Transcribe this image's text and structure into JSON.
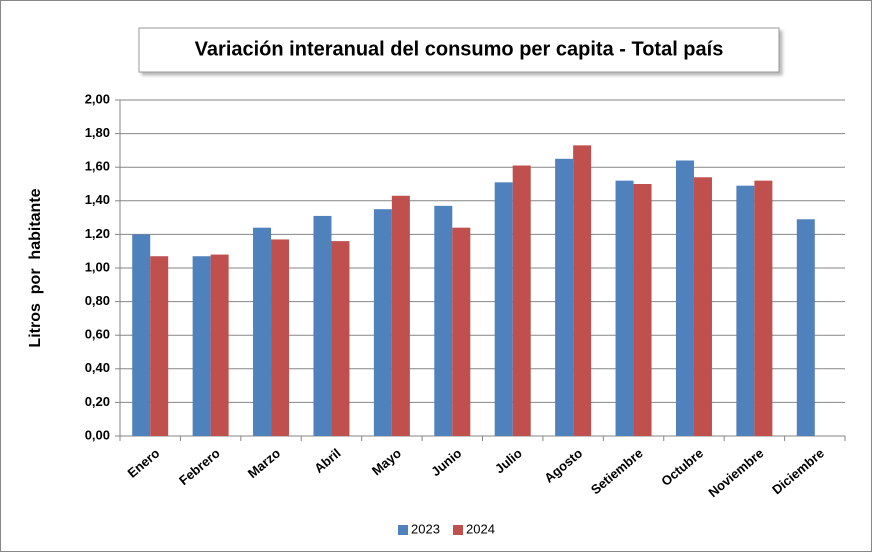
{
  "chart_data": {
    "type": "bar",
    "title": "Variación interanual del consumo per capita - Total país",
    "y_label": "Litros  por  habitante",
    "categories": [
      "Enero",
      "Febrero",
      "Marzo",
      "Abril",
      "Mayo",
      "Junio",
      "Julio",
      "Agosto",
      "Setiembre",
      "Octubre",
      "Noviembre",
      "Diciembre"
    ],
    "series": [
      {
        "name": "2023",
        "color": "#4f81bd",
        "values": [
          1.2,
          1.07,
          1.24,
          1.31,
          1.35,
          1.37,
          1.51,
          1.65,
          1.52,
          1.64,
          1.49,
          1.29
        ]
      },
      {
        "name": "2024",
        "color": "#c0504d",
        "values": [
          1.07,
          1.08,
          1.17,
          1.16,
          1.43,
          1.24,
          1.61,
          1.73,
          1.5,
          1.54,
          1.52,
          null
        ]
      }
    ],
    "ylim": [
      0,
      2
    ],
    "yticks": [
      {
        "value": 0,
        "label": "0,00"
      },
      {
        "value": 0.2,
        "label": "0,20"
      },
      {
        "value": 0.4,
        "label": "0,40"
      },
      {
        "value": 0.6,
        "label": "0,60"
      },
      {
        "value": 0.8,
        "label": "0,80"
      },
      {
        "value": 1.0,
        "label": "1,00"
      },
      {
        "value": 1.2,
        "label": "1,20"
      },
      {
        "value": 1.4,
        "label": "1,40"
      },
      {
        "value": 1.6,
        "label": "1,60"
      },
      {
        "value": 1.8,
        "label": "1,80"
      },
      {
        "value": 2.0,
        "label": "2,00"
      }
    ],
    "grid": true,
    "legend": "bottom"
  }
}
